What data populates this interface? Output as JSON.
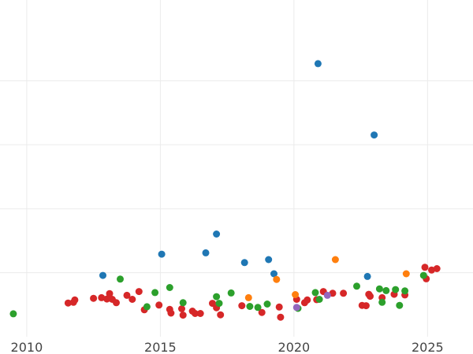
{
  "chart_data": {
    "type": "scatter",
    "title": "",
    "xlabel": "",
    "ylabel": "",
    "xlim": [
      2009.0,
      2026.7
    ],
    "ylim": [
      0.0,
      100.0
    ],
    "xticks": [
      2010,
      2015,
      2020,
      2025
    ],
    "yticks_gridlines": [
      19,
      38,
      57,
      76
    ],
    "grid": true,
    "legend": "none",
    "series": [
      {
        "color": "#1f77b4",
        "points": [
          [
            2012.85,
            18.2
          ],
          [
            2015.05,
            24.5
          ],
          [
            2016.7,
            24.9
          ],
          [
            2017.1,
            30.5
          ],
          [
            2018.15,
            22.0
          ],
          [
            2019.05,
            22.9
          ],
          [
            2019.25,
            18.7
          ],
          [
            2020.9,
            81.1
          ],
          [
            2022.75,
            17.9
          ],
          [
            2023.0,
            59.9
          ]
        ]
      },
      {
        "color": "#d62728",
        "points": [
          [
            2011.55,
            10.0
          ],
          [
            2011.75,
            10.2
          ],
          [
            2011.8,
            10.9
          ],
          [
            2012.5,
            11.4
          ],
          [
            2012.8,
            11.6
          ],
          [
            2013.0,
            11.2
          ],
          [
            2013.1,
            12.8
          ],
          [
            2013.2,
            11.1
          ],
          [
            2013.35,
            10.1
          ],
          [
            2013.75,
            12.3
          ],
          [
            2013.95,
            11.1
          ],
          [
            2014.2,
            13.4
          ],
          [
            2014.4,
            8.0
          ],
          [
            2014.95,
            9.4
          ],
          [
            2015.35,
            8.1
          ],
          [
            2015.4,
            7.0
          ],
          [
            2015.8,
            8.3
          ],
          [
            2015.85,
            6.4
          ],
          [
            2016.2,
            7.6
          ],
          [
            2016.3,
            6.9
          ],
          [
            2016.5,
            6.9
          ],
          [
            2016.95,
            9.9
          ],
          [
            2017.1,
            8.6
          ],
          [
            2017.25,
            6.5
          ],
          [
            2018.05,
            9.2
          ],
          [
            2018.8,
            7.2
          ],
          [
            2019.45,
            8.8
          ],
          [
            2019.5,
            5.8
          ],
          [
            2020.1,
            11.1
          ],
          [
            2020.4,
            10.1
          ],
          [
            2020.5,
            10.9
          ],
          [
            2020.85,
            11.0
          ],
          [
            2021.1,
            13.4
          ],
          [
            2021.45,
            12.9
          ],
          [
            2021.85,
            12.9
          ],
          [
            2022.55,
            9.3
          ],
          [
            2022.7,
            9.2
          ],
          [
            2022.8,
            12.6
          ],
          [
            2022.85,
            12.0
          ],
          [
            2023.3,
            11.6
          ],
          [
            2023.75,
            12.6
          ],
          [
            2024.15,
            12.4
          ],
          [
            2024.9,
            20.6
          ],
          [
            2024.95,
            17.2
          ],
          [
            2025.15,
            19.8
          ],
          [
            2025.35,
            20.2
          ]
        ]
      },
      {
        "color": "#2ca02c",
        "points": [
          [
            2009.5,
            6.8
          ],
          [
            2013.5,
            17.1
          ],
          [
            2014.5,
            8.9
          ],
          [
            2014.8,
            13.1
          ],
          [
            2015.35,
            14.6
          ],
          [
            2015.85,
            10.1
          ],
          [
            2017.1,
            11.9
          ],
          [
            2017.2,
            9.9
          ],
          [
            2017.65,
            13.0
          ],
          [
            2018.35,
            9.0
          ],
          [
            2018.65,
            8.7
          ],
          [
            2019.0,
            9.7
          ],
          [
            2020.15,
            8.4
          ],
          [
            2020.8,
            13.1
          ],
          [
            2020.95,
            11.1
          ],
          [
            2022.35,
            15.0
          ],
          [
            2023.2,
            14.2
          ],
          [
            2023.3,
            10.2
          ],
          [
            2023.45,
            13.7
          ],
          [
            2023.8,
            14.0
          ],
          [
            2023.95,
            9.3
          ],
          [
            2024.15,
            13.6
          ],
          [
            2024.85,
            18.2
          ]
        ]
      },
      {
        "color": "#ff7f0e",
        "points": [
          [
            2018.3,
            11.6
          ],
          [
            2019.35,
            17.0
          ],
          [
            2020.05,
            12.5
          ],
          [
            2021.55,
            22.9
          ],
          [
            2024.2,
            18.7
          ]
        ]
      },
      {
        "color": "#9467bd",
        "points": [
          [
            2020.1,
            8.7
          ],
          [
            2021.25,
            12.3
          ]
        ]
      }
    ]
  }
}
